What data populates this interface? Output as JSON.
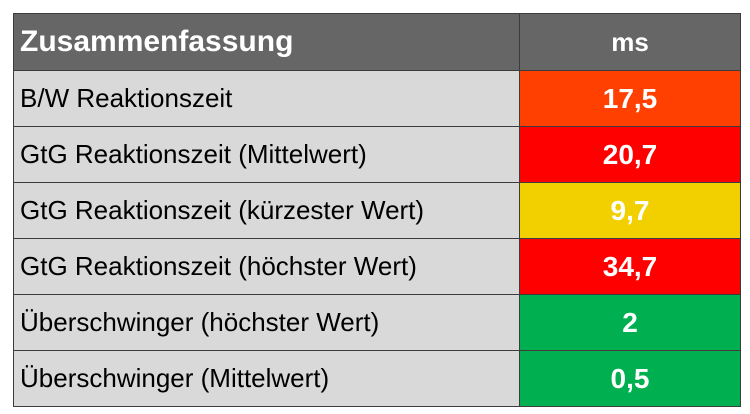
{
  "header": {
    "title": "Zusammenfassung",
    "unit": "ms"
  },
  "rows": [
    {
      "label": "B/W Reaktionszeit",
      "value": "17,5",
      "color": "#ff4000"
    },
    {
      "label": "GtG Reaktionszeit (Mittelwert)",
      "value": "20,7",
      "color": "#ff0000"
    },
    {
      "label": "GtG Reaktionszeit (kürzester Wert)",
      "value": "9,7",
      "color": "#f2d000"
    },
    {
      "label": "GtG Reaktionszeit (höchster Wert)",
      "value": "34,7",
      "color": "#ff0000"
    },
    {
      "label": "Überschwinger (höchster Wert)",
      "value": "2",
      "color": "#00b050"
    },
    {
      "label": "Überschwinger (Mittelwert)",
      "value": "0,5",
      "color": "#00b050"
    }
  ]
}
